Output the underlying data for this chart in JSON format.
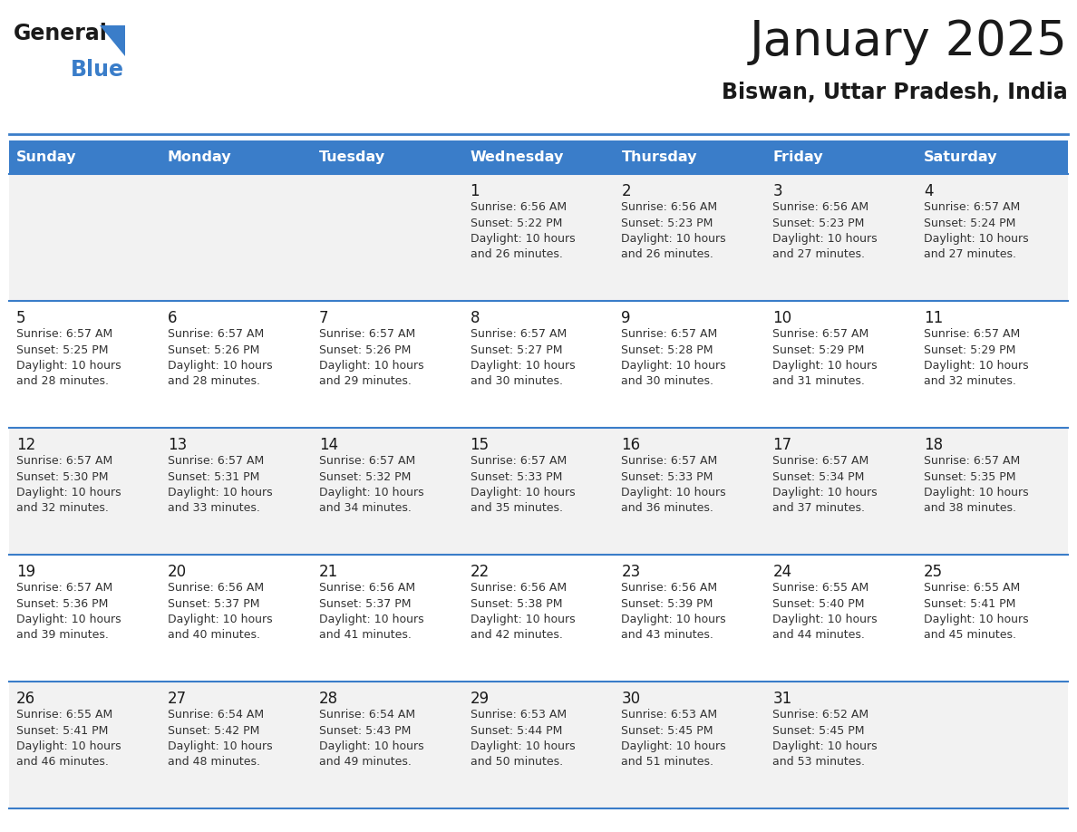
{
  "title": "January 2025",
  "subtitle": "Biswan, Uttar Pradesh, India",
  "header_bg": "#3A7DC9",
  "header_text_color": "#FFFFFF",
  "cell_bg_row0": "#F2F2F2",
  "cell_bg_row1": "#FFFFFF",
  "cell_bg_row2": "#F2F2F2",
  "cell_bg_row3": "#FFFFFF",
  "cell_bg_row4": "#F2F2F2",
  "border_color": "#3A7DC9",
  "day_headers": [
    "Sunday",
    "Monday",
    "Tuesday",
    "Wednesday",
    "Thursday",
    "Friday",
    "Saturday"
  ],
  "title_color": "#1a1a1a",
  "subtitle_color": "#1a1a1a",
  "num_color": "#1a1a1a",
  "info_color": "#333333",
  "logo_general_color": "#1a1a1a",
  "logo_blue_color": "#3A7DC9",
  "logo_triangle_color": "#3A7DC9",
  "calendar_data": [
    [
      {
        "day": "",
        "info": ""
      },
      {
        "day": "",
        "info": ""
      },
      {
        "day": "",
        "info": ""
      },
      {
        "day": "1",
        "info": "Sunrise: 6:56 AM\nSunset: 5:22 PM\nDaylight: 10 hours\nand 26 minutes."
      },
      {
        "day": "2",
        "info": "Sunrise: 6:56 AM\nSunset: 5:23 PM\nDaylight: 10 hours\nand 26 minutes."
      },
      {
        "day": "3",
        "info": "Sunrise: 6:56 AM\nSunset: 5:23 PM\nDaylight: 10 hours\nand 27 minutes."
      },
      {
        "day": "4",
        "info": "Sunrise: 6:57 AM\nSunset: 5:24 PM\nDaylight: 10 hours\nand 27 minutes."
      }
    ],
    [
      {
        "day": "5",
        "info": "Sunrise: 6:57 AM\nSunset: 5:25 PM\nDaylight: 10 hours\nand 28 minutes."
      },
      {
        "day": "6",
        "info": "Sunrise: 6:57 AM\nSunset: 5:26 PM\nDaylight: 10 hours\nand 28 minutes."
      },
      {
        "day": "7",
        "info": "Sunrise: 6:57 AM\nSunset: 5:26 PM\nDaylight: 10 hours\nand 29 minutes."
      },
      {
        "day": "8",
        "info": "Sunrise: 6:57 AM\nSunset: 5:27 PM\nDaylight: 10 hours\nand 30 minutes."
      },
      {
        "day": "9",
        "info": "Sunrise: 6:57 AM\nSunset: 5:28 PM\nDaylight: 10 hours\nand 30 minutes."
      },
      {
        "day": "10",
        "info": "Sunrise: 6:57 AM\nSunset: 5:29 PM\nDaylight: 10 hours\nand 31 minutes."
      },
      {
        "day": "11",
        "info": "Sunrise: 6:57 AM\nSunset: 5:29 PM\nDaylight: 10 hours\nand 32 minutes."
      }
    ],
    [
      {
        "day": "12",
        "info": "Sunrise: 6:57 AM\nSunset: 5:30 PM\nDaylight: 10 hours\nand 32 minutes."
      },
      {
        "day": "13",
        "info": "Sunrise: 6:57 AM\nSunset: 5:31 PM\nDaylight: 10 hours\nand 33 minutes."
      },
      {
        "day": "14",
        "info": "Sunrise: 6:57 AM\nSunset: 5:32 PM\nDaylight: 10 hours\nand 34 minutes."
      },
      {
        "day": "15",
        "info": "Sunrise: 6:57 AM\nSunset: 5:33 PM\nDaylight: 10 hours\nand 35 minutes."
      },
      {
        "day": "16",
        "info": "Sunrise: 6:57 AM\nSunset: 5:33 PM\nDaylight: 10 hours\nand 36 minutes."
      },
      {
        "day": "17",
        "info": "Sunrise: 6:57 AM\nSunset: 5:34 PM\nDaylight: 10 hours\nand 37 minutes."
      },
      {
        "day": "18",
        "info": "Sunrise: 6:57 AM\nSunset: 5:35 PM\nDaylight: 10 hours\nand 38 minutes."
      }
    ],
    [
      {
        "day": "19",
        "info": "Sunrise: 6:57 AM\nSunset: 5:36 PM\nDaylight: 10 hours\nand 39 minutes."
      },
      {
        "day": "20",
        "info": "Sunrise: 6:56 AM\nSunset: 5:37 PM\nDaylight: 10 hours\nand 40 minutes."
      },
      {
        "day": "21",
        "info": "Sunrise: 6:56 AM\nSunset: 5:37 PM\nDaylight: 10 hours\nand 41 minutes."
      },
      {
        "day": "22",
        "info": "Sunrise: 6:56 AM\nSunset: 5:38 PM\nDaylight: 10 hours\nand 42 minutes."
      },
      {
        "day": "23",
        "info": "Sunrise: 6:56 AM\nSunset: 5:39 PM\nDaylight: 10 hours\nand 43 minutes."
      },
      {
        "day": "24",
        "info": "Sunrise: 6:55 AM\nSunset: 5:40 PM\nDaylight: 10 hours\nand 44 minutes."
      },
      {
        "day": "25",
        "info": "Sunrise: 6:55 AM\nSunset: 5:41 PM\nDaylight: 10 hours\nand 45 minutes."
      }
    ],
    [
      {
        "day": "26",
        "info": "Sunrise: 6:55 AM\nSunset: 5:41 PM\nDaylight: 10 hours\nand 46 minutes."
      },
      {
        "day": "27",
        "info": "Sunrise: 6:54 AM\nSunset: 5:42 PM\nDaylight: 10 hours\nand 48 minutes."
      },
      {
        "day": "28",
        "info": "Sunrise: 6:54 AM\nSunset: 5:43 PM\nDaylight: 10 hours\nand 49 minutes."
      },
      {
        "day": "29",
        "info": "Sunrise: 6:53 AM\nSunset: 5:44 PM\nDaylight: 10 hours\nand 50 minutes."
      },
      {
        "day": "30",
        "info": "Sunrise: 6:53 AM\nSunset: 5:45 PM\nDaylight: 10 hours\nand 51 minutes."
      },
      {
        "day": "31",
        "info": "Sunrise: 6:52 AM\nSunset: 5:45 PM\nDaylight: 10 hours\nand 53 minutes."
      },
      {
        "day": "",
        "info": ""
      }
    ]
  ],
  "row_bg_colors": [
    "#F2F2F2",
    "#FFFFFF",
    "#F2F2F2",
    "#FFFFFF",
    "#F2F2F2"
  ]
}
